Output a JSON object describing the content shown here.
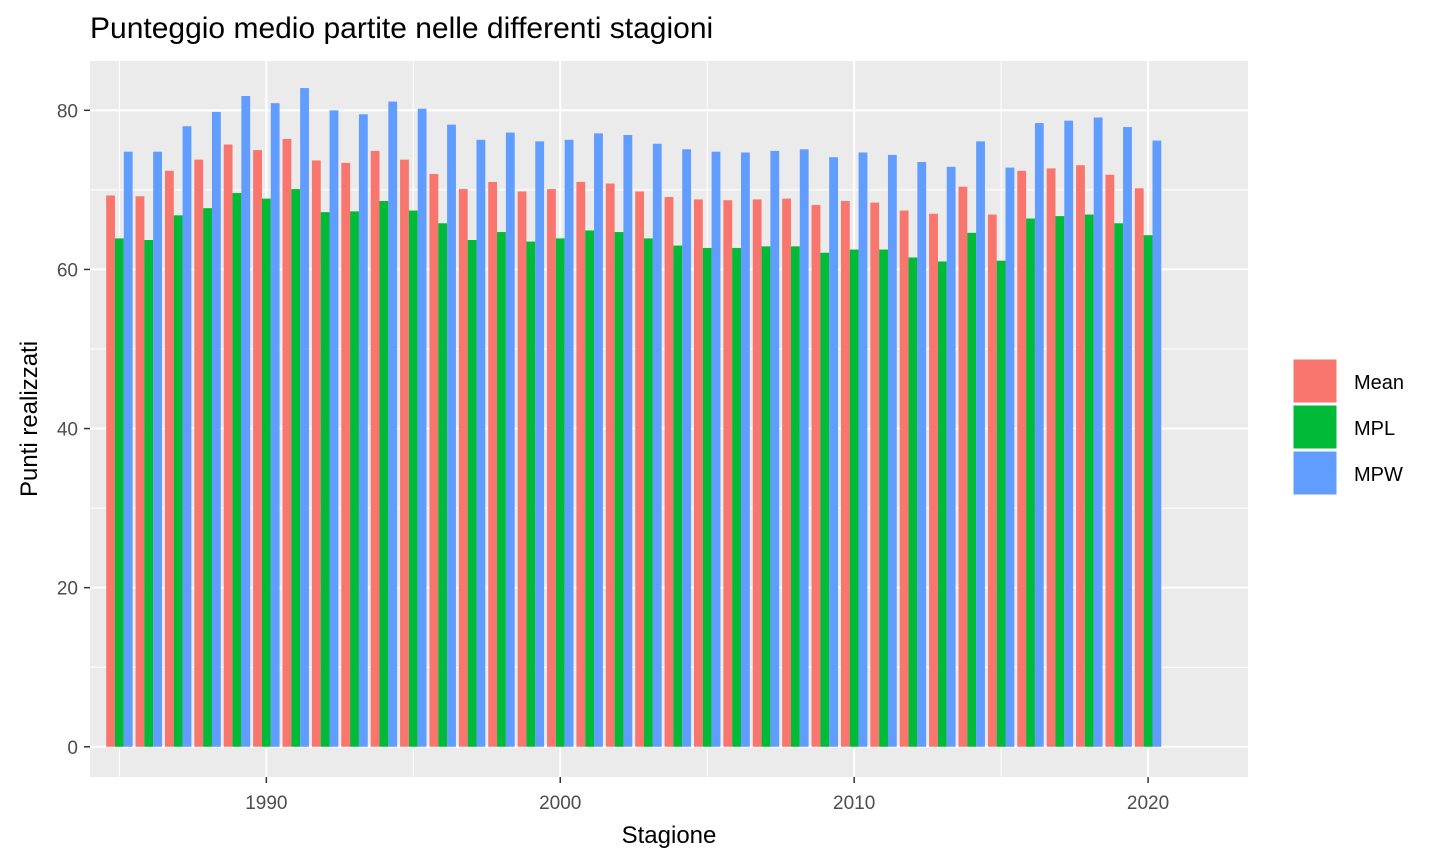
{
  "chart_data": {
    "type": "bar",
    "title": "Punteggio medio partite nelle differenti stagioni",
    "xlabel": "Stagione",
    "ylabel": "Punti realizzati",
    "xlim": [
      1984.0,
      2023.4
    ],
    "ylim": [
      -3.8,
      86.2
    ],
    "x_ticks": [
      1990,
      2000,
      2010,
      2020
    ],
    "y_ticks": [
      0,
      20,
      40,
      60,
      80
    ],
    "grid": true,
    "legend_position": "right",
    "categories": [
      1985,
      1986,
      1987,
      1988,
      1989,
      1990,
      1991,
      1992,
      1993,
      1994,
      1995,
      1996,
      1997,
      1998,
      1999,
      2000,
      2001,
      2002,
      2003,
      2004,
      2005,
      2006,
      2007,
      2008,
      2009,
      2010,
      2011,
      2012,
      2013,
      2014,
      2015,
      2016,
      2017,
      2018,
      2019,
      2020
    ],
    "series": [
      {
        "name": "Mean",
        "color": "#F8766D",
        "values": [
          69.3,
          69.2,
          72.4,
          73.8,
          75.7,
          75.0,
          76.4,
          73.7,
          73.4,
          74.9,
          73.8,
          72.0,
          70.1,
          71.0,
          69.8,
          70.1,
          71.0,
          70.8,
          69.8,
          69.1,
          68.8,
          68.7,
          68.8,
          68.9,
          68.1,
          68.6,
          68.4,
          67.4,
          67.0,
          70.4,
          66.9,
          72.4,
          72.7,
          73.1,
          71.9,
          70.2
        ]
      },
      {
        "name": "MPL",
        "color": "#00BA38",
        "values": [
          63.9,
          63.7,
          66.8,
          67.7,
          69.6,
          68.9,
          70.1,
          67.2,
          67.3,
          68.6,
          67.4,
          65.8,
          63.7,
          64.7,
          63.5,
          63.9,
          64.9,
          64.7,
          63.9,
          63.0,
          62.7,
          62.7,
          62.9,
          62.9,
          62.1,
          62.5,
          62.5,
          61.5,
          61.0,
          64.6,
          61.1,
          66.4,
          66.7,
          66.9,
          65.8,
          64.3
        ]
      },
      {
        "name": "MPW",
        "color": "#619CFF",
        "values": [
          74.8,
          74.8,
          78.0,
          79.8,
          81.8,
          80.9,
          82.8,
          80.0,
          79.5,
          81.1,
          80.2,
          78.2,
          76.3,
          77.2,
          76.1,
          76.3,
          77.1,
          76.9,
          75.8,
          75.1,
          74.8,
          74.7,
          74.9,
          75.1,
          74.1,
          74.7,
          74.4,
          73.5,
          72.9,
          76.1,
          72.8,
          78.4,
          78.7,
          79.1,
          77.9,
          76.2
        ]
      }
    ]
  }
}
